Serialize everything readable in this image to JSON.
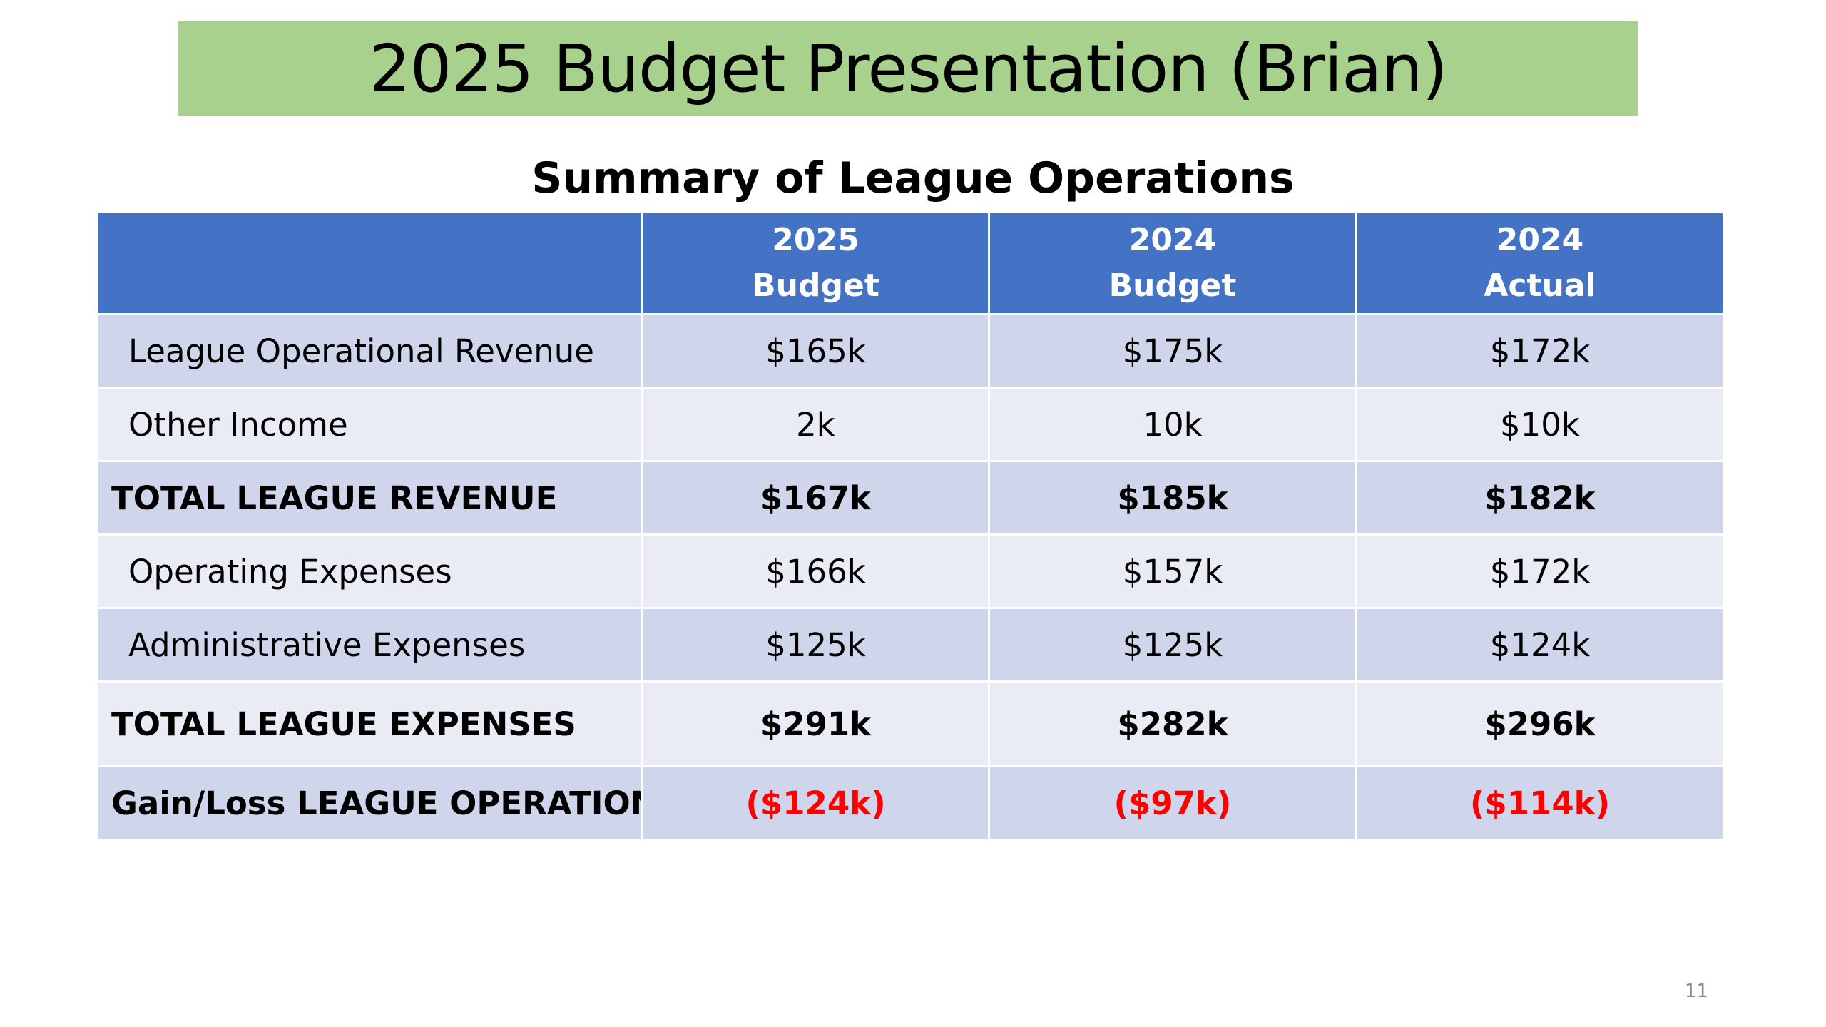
{
  "slide": {
    "title": "2025 Budget Presentation (Brian)",
    "title_banner_color": "#a9d18e",
    "page_number": "11"
  },
  "table": {
    "heading": "Summary of League Operations",
    "header_color": "#4472c4",
    "band_dark_color": "#cfd5ea",
    "band_light_color": "#e9ebf5",
    "negative_color": "#ff0000",
    "columns": [
      {
        "line1": "",
        "line2": ""
      },
      {
        "line1": "2025",
        "line2": "Budget"
      },
      {
        "line1": "2024",
        "line2": "Budget"
      },
      {
        "line1": "2024",
        "line2": "Actual"
      }
    ],
    "rows": [
      {
        "label": "League Operational Revenue",
        "values": [
          "$165k",
          "$175k",
          "$172k"
        ]
      },
      {
        "label": "Other Income",
        "values": [
          "2k",
          "10k",
          "$10k"
        ]
      },
      {
        "label": "TOTAL LEAGUE REVENUE",
        "values": [
          "$167k",
          "$185k",
          "$182k"
        ]
      },
      {
        "label": "Operating Expenses",
        "values": [
          "$166k",
          "$157k",
          "$172k"
        ]
      },
      {
        "label": "Administrative Expenses",
        "values": [
          "$125k",
          "$125k",
          "$124k"
        ]
      },
      {
        "label": "TOTAL LEAGUE EXPENSES",
        "values": [
          "$291k",
          "$282k",
          "$296k"
        ]
      },
      {
        "label": "Gain/Loss LEAGUE OPERATIONS",
        "values": [
          "($124k)",
          "($97k)",
          "($114k)"
        ]
      }
    ]
  }
}
